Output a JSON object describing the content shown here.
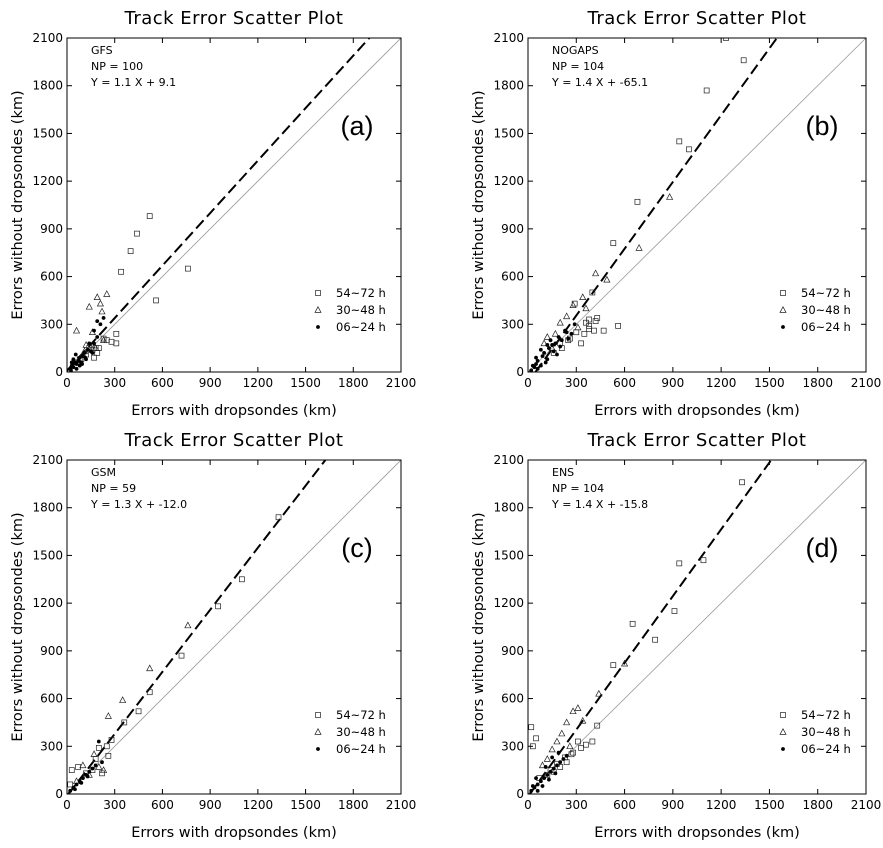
{
  "chart_data": [
    {
      "type": "scatter",
      "title": "Track Error Scatter Plot",
      "xlabel": "Errors with dropsondes (km)",
      "ylabel": "Errors without dropsondes (km)",
      "xlim": [
        0,
        2100
      ],
      "ylim": [
        0,
        2100
      ],
      "xticks": [
        "0",
        "300",
        "600",
        "900",
        "1200",
        "1500",
        "1800",
        "2100"
      ],
      "yticks": [
        "0",
        "300",
        "600",
        "900",
        "1200",
        "1500",
        "1800",
        "2100"
      ],
      "model": "GFS",
      "np_label": "NP = 100",
      "equation": "Y =  1.1 X +  9.1",
      "panel": "(a)",
      "fit": {
        "slope": 1.1,
        "intercept": 9.1
      },
      "legend": [
        "54~72 h",
        "30~48 h",
        "06~24 h"
      ],
      "series": [
        {
          "name": "54~72 h",
          "marker": "square",
          "x": [
            520,
            440,
            400,
            340,
            310,
            280,
            160,
            190,
            200,
            230,
            250,
            310,
            560,
            760,
            120,
            90,
            180,
            170,
            60,
            80,
            140
          ],
          "y": [
            980,
            870,
            760,
            630,
            240,
            190,
            140,
            120,
            150,
            210,
            200,
            180,
            450,
            650,
            110,
            80,
            150,
            90,
            60,
            80,
            150
          ]
        },
        {
          "name": "30~48 h",
          "marker": "triangle",
          "x": [
            250,
            210,
            190,
            140,
            60,
            160,
            230,
            120,
            180,
            110,
            100,
            220
          ],
          "y": [
            490,
            430,
            470,
            410,
            260,
            250,
            200,
            170,
            150,
            130,
            110,
            380
          ]
        },
        {
          "name": "06~24 h",
          "marker": "dot",
          "x": [
            20,
            30,
            40,
            50,
            60,
            70,
            80,
            90,
            100,
            110,
            130,
            150,
            170,
            190,
            210,
            230,
            40,
            60,
            80,
            120,
            160,
            140,
            170,
            190,
            30,
            55,
            75,
            95,
            115,
            35,
            25
          ],
          "y": [
            20,
            40,
            30,
            60,
            50,
            70,
            90,
            60,
            100,
            120,
            140,
            130,
            180,
            220,
            300,
            340,
            80,
            20,
            40,
            80,
            120,
            180,
            260,
            320,
            60,
            110,
            70,
            50,
            90,
            50,
            10
          ]
        }
      ]
    },
    {
      "type": "scatter",
      "title": "Track Error Scatter Plot",
      "xlabel": "Errors with dropsondes (km)",
      "ylabel": "Errors without dropsondes (km)",
      "xlim": [
        0,
        2100
      ],
      "ylim": [
        0,
        2100
      ],
      "xticks": [
        "0",
        "300",
        "600",
        "900",
        "1200",
        "1500",
        "1800",
        "2100"
      ],
      "yticks": [
        "0",
        "300",
        "600",
        "900",
        "1200",
        "1500",
        "1800",
        "2100"
      ],
      "model": "NOGAPS",
      "np_label": "NP = 104",
      "equation": "Y =  1.4 X + -65.1",
      "panel": "(b)",
      "fit": {
        "slope": 1.4,
        "intercept": -65.1
      },
      "legend": [
        "54~72 h",
        "30~48 h",
        "06~24 h"
      ],
      "series": [
        {
          "name": "54~72 h",
          "marker": "square",
          "x": [
            1230,
            1340,
            1110,
            940,
            1000,
            680,
            530,
            400,
            380,
            430,
            420,
            380,
            470,
            360,
            300,
            250,
            560,
            350,
            410,
            330,
            210,
            160,
            290,
            380,
            260,
            200
          ],
          "y": [
            2100,
            1960,
            1770,
            1450,
            1400,
            1070,
            810,
            500,
            290,
            340,
            320,
            270,
            260,
            310,
            250,
            200,
            290,
            240,
            260,
            180,
            150,
            120,
            430,
            330,
            210,
            180
          ]
        },
        {
          "name": "30~48 h",
          "marker": "triangle",
          "x": [
            880,
            690,
            420,
            490,
            340,
            280,
            240,
            120,
            170,
            200,
            360,
            150,
            100,
            310
          ],
          "y": [
            1100,
            780,
            620,
            580,
            470,
            420,
            350,
            220,
            240,
            310,
            400,
            150,
            180,
            280
          ]
        },
        {
          "name": "06~24 h",
          "marker": "dot",
          "x": [
            20,
            40,
            50,
            60,
            80,
            90,
            100,
            120,
            130,
            150,
            160,
            170,
            190,
            210,
            230,
            250,
            270,
            290,
            60,
            110,
            140,
            30,
            80,
            200,
            180,
            240,
            120,
            50
          ],
          "y": [
            10,
            30,
            50,
            70,
            40,
            100,
            120,
            80,
            150,
            170,
            130,
            180,
            220,
            200,
            260,
            210,
            240,
            300,
            20,
            60,
            200,
            40,
            140,
            160,
            110,
            250,
            170,
            90
          ]
        }
      ]
    },
    {
      "type": "scatter",
      "title": "Track Error Scatter Plot",
      "xlabel": "Errors with dropsondes (km)",
      "ylabel": "Errors without dropsondes (km)",
      "xlim": [
        0,
        2100
      ],
      "ylim": [
        0,
        2100
      ],
      "xticks": [
        "0",
        "300",
        "600",
        "900",
        "1200",
        "1500",
        "1800",
        "2100"
      ],
      "yticks": [
        "0",
        "300",
        "600",
        "900",
        "1200",
        "1500",
        "1800",
        "2100"
      ],
      "model": "GSM",
      "np_label": "NP = 59",
      "equation": "Y =  1.3 X + -12.0",
      "panel": "(c)",
      "fit": {
        "slope": 1.3,
        "intercept": -12.0
      },
      "legend": [
        "54~72 h",
        "30~48 h",
        "06~24 h"
      ],
      "series": [
        {
          "name": "54~72 h",
          "marker": "square",
          "x": [
            1330,
            1100,
            950,
            720,
            520,
            450,
            360,
            280,
            250,
            200,
            160,
            120,
            70,
            30,
            20,
            180,
            220,
            260
          ],
          "y": [
            1740,
            1350,
            1180,
            870,
            640,
            520,
            450,
            340,
            300,
            290,
            150,
            130,
            170,
            150,
            60,
            220,
            130,
            240
          ]
        },
        {
          "name": "30~48 h",
          "marker": "triangle",
          "x": [
            760,
            520,
            350,
            260,
            170,
            100,
            140,
            200,
            60,
            230
          ],
          "y": [
            1060,
            790,
            590,
            490,
            250,
            180,
            120,
            170,
            80,
            150
          ]
        },
        {
          "name": "06~24 h",
          "marker": "dot",
          "x": [
            20,
            40,
            60,
            80,
            100,
            120,
            140,
            160,
            180,
            200,
            220,
            50,
            90,
            130
          ],
          "y": [
            20,
            40,
            60,
            80,
            100,
            120,
            140,
            160,
            180,
            330,
            200,
            30,
            70,
            110
          ]
        }
      ]
    },
    {
      "type": "scatter",
      "title": "Track Error Scatter Plot",
      "xlabel": "Errors with dropsondes (km)",
      "ylabel": "Errors without dropsondes (km)",
      "xlim": [
        0,
        2100
      ],
      "ylim": [
        0,
        2100
      ],
      "xticks": [
        "0",
        "300",
        "600",
        "900",
        "1200",
        "1500",
        "1800",
        "2100"
      ],
      "yticks": [
        "0",
        "300",
        "600",
        "900",
        "1200",
        "1500",
        "1800",
        "2100"
      ],
      "model": "ENS",
      "np_label": "NP = 104",
      "equation": "Y =  1.4 X + -15.8",
      "panel": "(d)",
      "fit": {
        "slope": 1.4,
        "intercept": -15.8
      },
      "legend": [
        "54~72 h",
        "30~48 h",
        "06~24 h"
      ],
      "series": [
        {
          "name": "54~72 h",
          "marker": "square",
          "x": [
            1330,
            1090,
            940,
            910,
            790,
            650,
            530,
            430,
            400,
            360,
            330,
            280,
            240,
            200,
            160,
            120,
            70,
            30,
            20,
            50,
            310,
            270,
            230,
            180,
            140
          ],
          "y": [
            1960,
            1470,
            1450,
            1150,
            970,
            1070,
            810,
            430,
            330,
            310,
            290,
            260,
            200,
            170,
            140,
            120,
            100,
            300,
            420,
            350,
            330,
            250,
            230,
            190,
            150
          ]
        },
        {
          "name": "30~48 h",
          "marker": "triangle",
          "x": [
            600,
            440,
            310,
            280,
            240,
            210,
            180,
            150,
            120,
            90,
            340,
            260
          ],
          "y": [
            820,
            630,
            540,
            520,
            450,
            380,
            330,
            280,
            220,
            180,
            460,
            300
          ]
        },
        {
          "name": "06~24 h",
          "marker": "dot",
          "x": [
            20,
            40,
            60,
            80,
            100,
            120,
            140,
            160,
            180,
            200,
            220,
            240,
            60,
            90,
            130,
            170,
            30,
            50,
            110,
            150,
            190
          ],
          "y": [
            20,
            40,
            60,
            80,
            100,
            120,
            140,
            160,
            180,
            200,
            220,
            240,
            20,
            50,
            90,
            130,
            50,
            100,
            170,
            230,
            260
          ]
        }
      ]
    }
  ]
}
